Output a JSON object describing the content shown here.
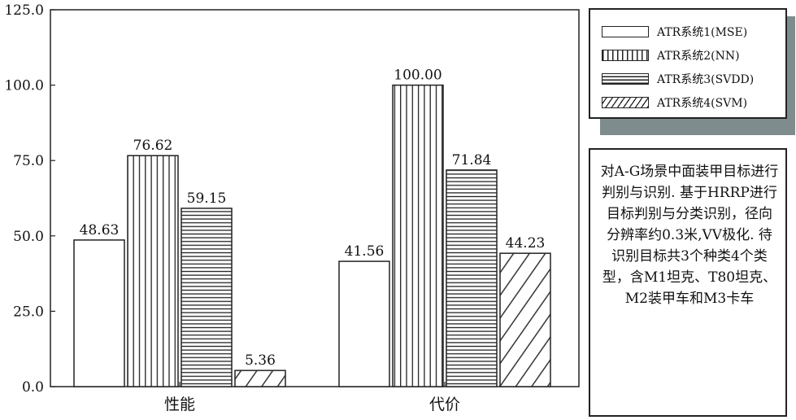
{
  "chart_data": {
    "type": "bar",
    "categories": [
      "性能",
      "代价"
    ],
    "series": [
      {
        "name": "ATR系统1(MSE)",
        "values": [
          48.63,
          41.56
        ],
        "pattern": "none"
      },
      {
        "name": "ATR系统2(NN)",
        "values": [
          76.62,
          100.0
        ],
        "pattern": "vertical"
      },
      {
        "name": "ATR系统3(SVDD)",
        "values": [
          59.15,
          71.84
        ],
        "pattern": "horizontal"
      },
      {
        "name": "ATR系统4(SVM)",
        "values": [
          5.36,
          44.23
        ],
        "pattern": "diagonal"
      }
    ],
    "data_labels": [
      [
        "48.63",
        "41.56"
      ],
      [
        "76.62",
        "100.00"
      ],
      [
        "59.15",
        "71.84"
      ],
      [
        "5.36",
        "44.23"
      ]
    ],
    "yticks": [
      "0.0",
      "25.0",
      "50.0",
      "75.0",
      "100.0",
      "125.0"
    ],
    "ylim": [
      0,
      125
    ],
    "grid": false,
    "legend_position": "top-right, outside plot"
  },
  "legend": {
    "items": [
      {
        "label": "ATR系统1(MSE)"
      },
      {
        "label": "ATR系统2(NN)"
      },
      {
        "label": "ATR系统3(SVDD)"
      },
      {
        "label": "ATR系统4(SVM)"
      }
    ]
  },
  "description": "对A-G场景中面装甲目标进行判别与识别. 基于HRRP进行目标判别与分类识别，径向分辨率约0.3米,VV极化. 待识别目标共3个种类4个类型，含M1坦克、T80坦克、M2装甲车和M3卡车",
  "colors": {
    "ink": "#222222",
    "background": "#ffffff",
    "legend_shadow": "#7f8c8d"
  }
}
